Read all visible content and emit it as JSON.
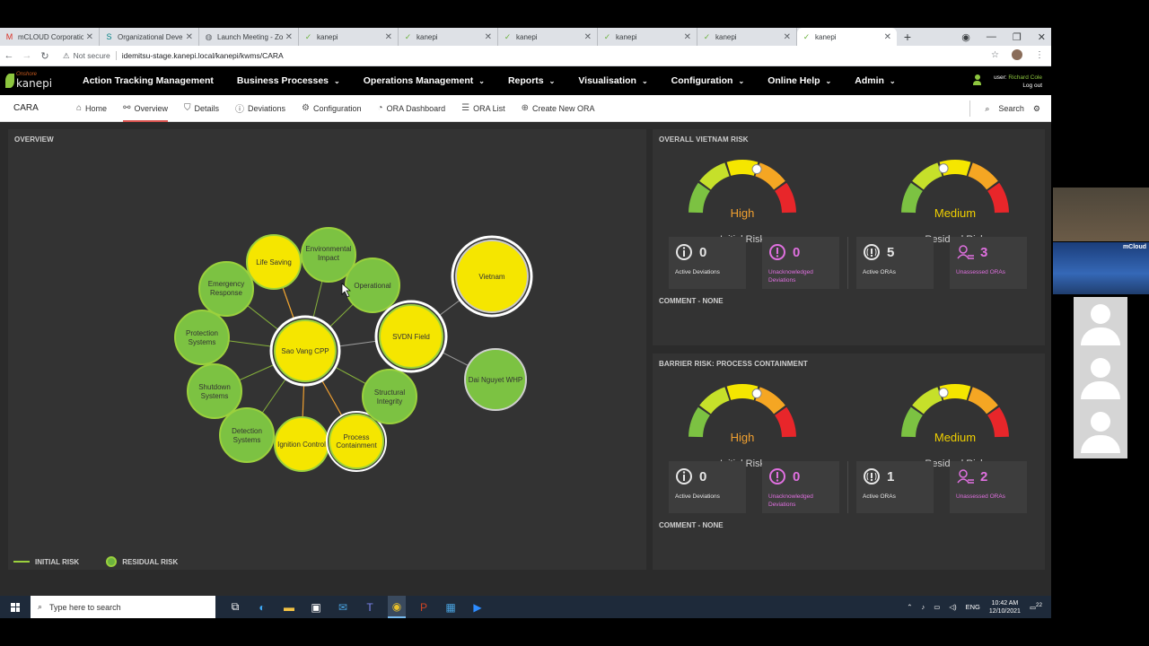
{
  "browser": {
    "tabs": [
      {
        "title": "mCLOUD Corporation",
        "icon": "gmail-icon",
        "active": false
      },
      {
        "title": "Organizational Devel",
        "icon": "sharepoint-icon",
        "active": false
      },
      {
        "title": "Launch Meeting - Zoo",
        "icon": "globe-icon",
        "active": false
      },
      {
        "title": "kanepi",
        "icon": "kanepi-icon",
        "active": false
      },
      {
        "title": "kanepi",
        "icon": "kanepi-icon",
        "active": false
      },
      {
        "title": "kanepi",
        "icon": "kanepi-icon",
        "active": false
      },
      {
        "title": "kanepi",
        "icon": "kanepi-icon",
        "active": false
      },
      {
        "title": "kanepi",
        "icon": "kanepi-icon",
        "active": false
      },
      {
        "title": "kanepi",
        "icon": "kanepi-icon",
        "active": true
      }
    ],
    "not_secure": "Not secure",
    "url": "idemitsu-stage.kanepi.local/kanepi/kwms/CARA"
  },
  "app": {
    "logo_top": "Onshore",
    "logo_main": "kanepi",
    "nav": [
      {
        "label": "Action Tracking Management",
        "dropdown": false
      },
      {
        "label": "Business Processes",
        "dropdown": true
      },
      {
        "label": "Operations Management",
        "dropdown": true
      },
      {
        "label": "Reports",
        "dropdown": true
      },
      {
        "label": "Visualisation",
        "dropdown": true
      },
      {
        "label": "Configuration",
        "dropdown": true
      },
      {
        "label": "Online Help",
        "dropdown": true
      },
      {
        "label": "Admin",
        "dropdown": true
      }
    ],
    "user_prefix": "user:",
    "user_name": "Richard Cole",
    "logout": "Log out"
  },
  "subnav": {
    "app_name": "CARA",
    "items": [
      {
        "label": "Home",
        "icon": "home-icon",
        "active": false
      },
      {
        "label": "Overview",
        "icon": "network-icon",
        "active": true
      },
      {
        "label": "Details",
        "icon": "shield-check-icon",
        "active": false
      },
      {
        "label": "Deviations",
        "icon": "alert-circle-icon",
        "active": false
      },
      {
        "label": "Configuration",
        "icon": "gears-icon",
        "active": false
      },
      {
        "label": "ORA Dashboard",
        "icon": "dashboard-icon",
        "active": false
      },
      {
        "label": "ORA List",
        "icon": "list-icon",
        "active": false
      },
      {
        "label": "Create New ORA",
        "icon": "plus-circle-icon",
        "active": false
      }
    ],
    "search": "Search"
  },
  "overview": {
    "title": "OVERVIEW",
    "legend_initial": "INITIAL RISK",
    "legend_residual": "RESIDUAL RISK",
    "nodes": {
      "life_saving": "Life Saving",
      "environmental": [
        "Environmental",
        "Impact"
      ],
      "operational": "Operational",
      "emergency": [
        "Emergency",
        "Response"
      ],
      "protection": [
        "Protection",
        "Systems"
      ],
      "shutdown": [
        "Shutdown",
        "Systems"
      ],
      "detection": [
        "Detection",
        "Systems"
      ],
      "ignition": "Ignition Control",
      "process": [
        "Process",
        "Containment"
      ],
      "structural": [
        "Structural",
        "Integrity"
      ],
      "sao_vang": "Sao Vang CPP",
      "svdn": "SVDN Field",
      "vietnam": "Vietnam",
      "dai_nguyet": "Dai Nguyet WHP"
    }
  },
  "risk_panels": [
    {
      "title": "OVERALL VIETNAM RISK",
      "initial": {
        "rating": "High",
        "label": "Initial Risk",
        "color": "#f0a030"
      },
      "residual": {
        "rating": "Medium",
        "label": "Residual Risk",
        "color": "#f0d000"
      },
      "cards": [
        {
          "value": "0",
          "label": [
            "Active Deviations"
          ],
          "icon": "info-icon"
        },
        {
          "value": "0",
          "label": [
            "Unacknowledged",
            "Deviations"
          ],
          "icon": "alert-icon"
        },
        {
          "value": "5",
          "label": [
            "Active ORAs"
          ],
          "icon": "warning-circle-icon"
        },
        {
          "value": "3",
          "label": [
            "Unassessed ORAs"
          ],
          "icon": "users-icon"
        }
      ],
      "comment": "COMMENT - NONE"
    },
    {
      "title": "BARRIER RISK: PROCESS CONTAINMENT",
      "initial": {
        "rating": "High",
        "label": "Initial Risk",
        "color": "#f0a030"
      },
      "residual": {
        "rating": "Medium",
        "label": "Residual Risk",
        "color": "#f0d000"
      },
      "cards": [
        {
          "value": "0",
          "label": [
            "Active Deviations"
          ],
          "icon": "info-icon"
        },
        {
          "value": "0",
          "label": [
            "Unacknowledged",
            "Deviations"
          ],
          "icon": "alert-icon"
        },
        {
          "value": "1",
          "label": [
            "Active ORAs"
          ],
          "icon": "warning-circle-icon"
        },
        {
          "value": "2",
          "label": [
            "Unassessed ORAs"
          ],
          "icon": "users-icon"
        }
      ],
      "comment": "COMMENT - NONE"
    }
  ],
  "taskbar": {
    "search_placeholder": "Type here to search",
    "lang": "ENG",
    "time": "10:42 AM",
    "date": "12/10/2021",
    "notif_count": "22"
  },
  "zoom": {
    "brand": "mCloud"
  }
}
